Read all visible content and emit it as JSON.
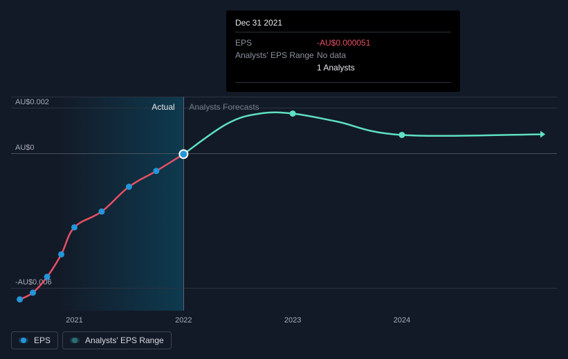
{
  "colors": {
    "background": "#131a27",
    "grid": "#2a3240",
    "grid_emph": "#4a525f",
    "axis_text": "#a6adb9",
    "actual_line": "#e94f64",
    "forecast_line": "#5fe0c3",
    "marker_fill": "#2396d9",
    "marker_stroke": "#ffffff",
    "forecast_marker": "#5fe0c3",
    "tooltip_bg": "#000000",
    "tooltip_neg": "#e94f64",
    "gradient_from": "#0e3a4f",
    "gradient_to": "rgba(14,58,79,0)"
  },
  "chart": {
    "type": "line",
    "ylim": [
      -0.007,
      0.0025
    ],
    "y_ticks": [
      {
        "value": 0.002,
        "label": "AU$0.002"
      },
      {
        "value": 0,
        "label": "AU$0"
      },
      {
        "value": -0.006,
        "label": "-AU$0.006"
      }
    ],
    "x_year_ticks": [
      {
        "year": 2021,
        "label": "2021"
      },
      {
        "year": 2022,
        "label": "2022"
      },
      {
        "year": 2023,
        "label": "2023"
      },
      {
        "year": 2024,
        "label": "2024"
      }
    ],
    "x_range_years": [
      2020.42,
      2025.42
    ],
    "divider_year": 2022,
    "region_labels": {
      "actual": "Actual",
      "forecast": "Analysts Forecasts"
    },
    "actual_series": [
      {
        "year": 2020.5,
        "value": -0.0065
      },
      {
        "year": 2020.62,
        "value": -0.0062
      },
      {
        "year": 2020.75,
        "value": -0.0055
      },
      {
        "year": 2020.88,
        "value": -0.0045
      },
      {
        "year": 2021.0,
        "value": -0.0033
      },
      {
        "year": 2021.25,
        "value": -0.0026
      },
      {
        "year": 2021.5,
        "value": -0.0015
      },
      {
        "year": 2021.75,
        "value": -0.0008
      },
      {
        "year": 2022.0,
        "value": -5.1e-05
      }
    ],
    "forecast_series": [
      {
        "year": 2022.0,
        "value": -5.1e-05
      },
      {
        "year": 2022.4,
        "value": 0.0013
      },
      {
        "year": 2022.7,
        "value": 0.00175
      },
      {
        "year": 2023.0,
        "value": 0.00175
      },
      {
        "year": 2023.4,
        "value": 0.0014
      },
      {
        "year": 2024.0,
        "value": 0.0008
      },
      {
        "year": 2025.3,
        "value": 0.00083
      }
    ],
    "forecast_markers": [
      {
        "year": 2023.0,
        "value": 0.00175
      },
      {
        "year": 2024.0,
        "value": 0.0008
      }
    ],
    "highlight_point": {
      "year": 2022.0,
      "value": -5.1e-05
    },
    "line_width": 2.5,
    "marker_radius": 4.5,
    "highlight_radius": 6
  },
  "tooltip": {
    "date": "Dec 31 2021",
    "rows": [
      {
        "key": "EPS",
        "val": "-AU$0.000051",
        "cls": "neg"
      },
      {
        "key": "Analysts' EPS Range",
        "val": "No data",
        "cls": ""
      },
      {
        "key": "",
        "val": "1 Analysts",
        "cls": "analysts"
      }
    ]
  },
  "legend": [
    {
      "label": "EPS",
      "color": "#2396d9",
      "track": "#163b56"
    },
    {
      "label": "Analysts' EPS Range",
      "color": "#2b6e74",
      "track": "#1a3a40"
    }
  ]
}
